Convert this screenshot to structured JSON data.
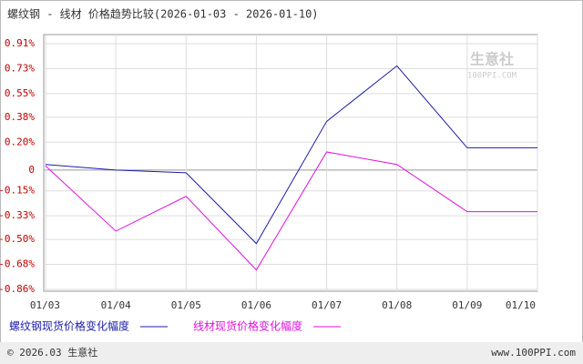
{
  "chart_data": {
    "type": "line",
    "title": "螺纹钢 - 线材 价格趋势比较(2026-01-03 - 2026-01-10)",
    "categories": [
      "01/03",
      "01/04",
      "01/05",
      "01/06",
      "01/07",
      "01/08",
      "01/09",
      "01/10"
    ],
    "series": [
      {
        "name": "螺纹钢现货价格变化幅度",
        "color": "#1c1ca8",
        "values": [
          0.04,
          0,
          -0.02,
          -0.53,
          0.35,
          0.75,
          0.16,
          0.16
        ]
      },
      {
        "name": "线材现货价格变化幅度",
        "color": "#e010e0",
        "values": [
          0.03,
          -0.44,
          -0.19,
          -0.72,
          0.13,
          0.04,
          -0.3,
          -0.3
        ]
      }
    ],
    "ylim": [
      -0.86,
      0.91
    ],
    "yticks": [
      {
        "value": 0.91,
        "label": "0.91%"
      },
      {
        "value": 0.73,
        "label": "0.73%"
      },
      {
        "value": 0.55,
        "label": "0.55%"
      },
      {
        "value": 0.38,
        "label": "0.38%"
      },
      {
        "value": 0.2,
        "label": "0.20%"
      },
      0,
      {
        "value": -0.15,
        "label": "-0.15%"
      },
      {
        "value": -0.33,
        "label": "-0.33%"
      },
      {
        "value": -0.5,
        "label": "-0.50%"
      },
      {
        "value": -0.68,
        "label": "-0.68%"
      },
      {
        "value": -0.86,
        "label": "-0.86%"
      }
    ],
    "grid": true,
    "watermark": [
      "生意社",
      "100PPI.COM"
    ],
    "footer_left": "© 2026.03 生意社",
    "footer_right": "www.100PPI.com"
  }
}
